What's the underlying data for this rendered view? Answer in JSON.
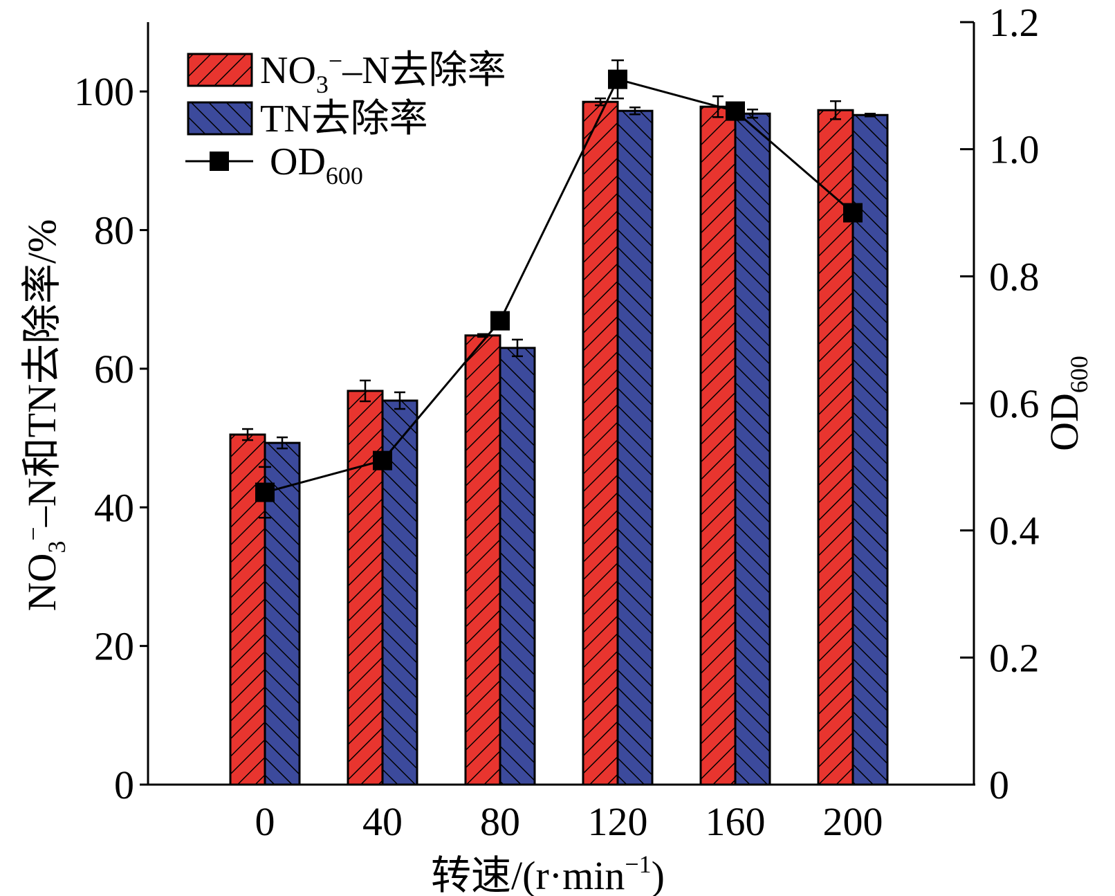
{
  "chart_data": {
    "type": "bar",
    "categories": [
      "0",
      "40",
      "80",
      "120",
      "160",
      "200"
    ],
    "series": [
      {
        "name": "NO3−–N去除率",
        "kind": "bar",
        "axis": "left",
        "color": "#e8352f",
        "pattern": "forward-hatch",
        "values": [
          50.5,
          56.8,
          64.8,
          98.5,
          97.8,
          97.3
        ],
        "errors": [
          0.8,
          1.5,
          0.2,
          0.5,
          1.5,
          1.3
        ]
      },
      {
        "name": "TN去除率",
        "kind": "bar",
        "axis": "left",
        "color": "#3c4a9c",
        "pattern": "back-hatch",
        "values": [
          49.3,
          55.4,
          63.0,
          97.2,
          96.8,
          96.6
        ],
        "errors": [
          0.8,
          1.2,
          1.2,
          0.5,
          0.6,
          0.2
        ]
      },
      {
        "name": "OD600",
        "kind": "line",
        "axis": "right",
        "color": "#000000",
        "marker": "square",
        "values": [
          0.46,
          0.51,
          0.73,
          1.11,
          1.06,
          0.9
        ],
        "errors": [
          0.04,
          0.0,
          0.0,
          0.03,
          0.0,
          0.0
        ]
      }
    ],
    "legend": {
      "placement": "top-left",
      "entries": [
        {
          "main": "NO",
          "sub": "3",
          "sup": "−",
          "rest": "–N去除率"
        },
        {
          "main": "TN去除率",
          "sub": "",
          "sup": "",
          "rest": ""
        },
        {
          "main": "OD",
          "sub": "600",
          "sup": "",
          "rest": ""
        }
      ]
    },
    "xlabel": {
      "main": "转速/(r·min",
      "sup": "−1",
      "tail": ")"
    },
    "ylabel_left": {
      "pre": "NO",
      "sub": "3",
      "sup": "−",
      "rest": "–N和TN去除率/%"
    },
    "ylabel_right": {
      "main": "OD",
      "sub": "600"
    },
    "ylim_left": [
      0,
      110
    ],
    "ylim_right": [
      0,
      1.2
    ],
    "yticks_left": [
      0,
      20,
      40,
      60,
      80,
      100
    ],
    "yticks_left_labels": [
      "0",
      "20",
      "40",
      "60",
      "80",
      "100"
    ],
    "yticks_right": [
      0,
      0.2,
      0.4,
      0.6,
      0.8,
      1.0,
      1.2
    ],
    "yticks_right_labels": [
      "0",
      "0.2",
      "0.4",
      "0.6",
      "0.8",
      "1.0",
      "1.2"
    ],
    "grid": false
  }
}
